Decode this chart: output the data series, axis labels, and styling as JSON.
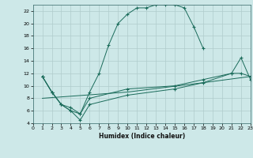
{
  "xlabel": "Humidex (Indice chaleur)",
  "bg_color": "#cde8e8",
  "grid_color": "#b0cccc",
  "line_color": "#1a6b5a",
  "xlim": [
    0,
    23
  ],
  "ylim": [
    4,
    23
  ],
  "yticks": [
    4,
    6,
    8,
    10,
    12,
    14,
    16,
    18,
    20,
    22
  ],
  "xticks": [
    0,
    1,
    2,
    3,
    4,
    5,
    6,
    7,
    8,
    9,
    10,
    11,
    12,
    13,
    14,
    15,
    16,
    17,
    18,
    19,
    20,
    21,
    22,
    23
  ],
  "curve1_x": [
    1,
    2,
    3,
    4,
    5,
    6,
    7,
    8,
    9,
    10,
    11,
    12,
    13,
    14,
    15,
    16,
    17,
    18
  ],
  "curve1_y": [
    11.5,
    9.0,
    7.0,
    6.0,
    5.5,
    9.0,
    12.0,
    16.5,
    20.0,
    21.5,
    22.5,
    22.5,
    23.0,
    23.0,
    23.0,
    22.5,
    19.5,
    16.0
  ],
  "curve2_x": [
    1,
    2,
    3,
    4,
    5,
    6,
    10,
    15,
    18,
    21,
    22,
    23
  ],
  "curve2_y": [
    11.5,
    9.0,
    7.0,
    6.5,
    5.5,
    8.0,
    9.5,
    10.0,
    11.0,
    12.0,
    14.5,
    11.0
  ],
  "curve3_x": [
    1,
    2,
    3,
    4,
    5,
    6,
    10,
    15,
    18,
    21,
    22,
    23
  ],
  "curve3_y": [
    11.5,
    9.0,
    7.0,
    6.0,
    4.5,
    7.0,
    8.5,
    9.5,
    10.5,
    12.0,
    12.0,
    11.5
  ],
  "curve4_x": [
    1,
    10,
    18,
    23
  ],
  "curve4_y": [
    8.0,
    9.0,
    10.5,
    11.5
  ]
}
